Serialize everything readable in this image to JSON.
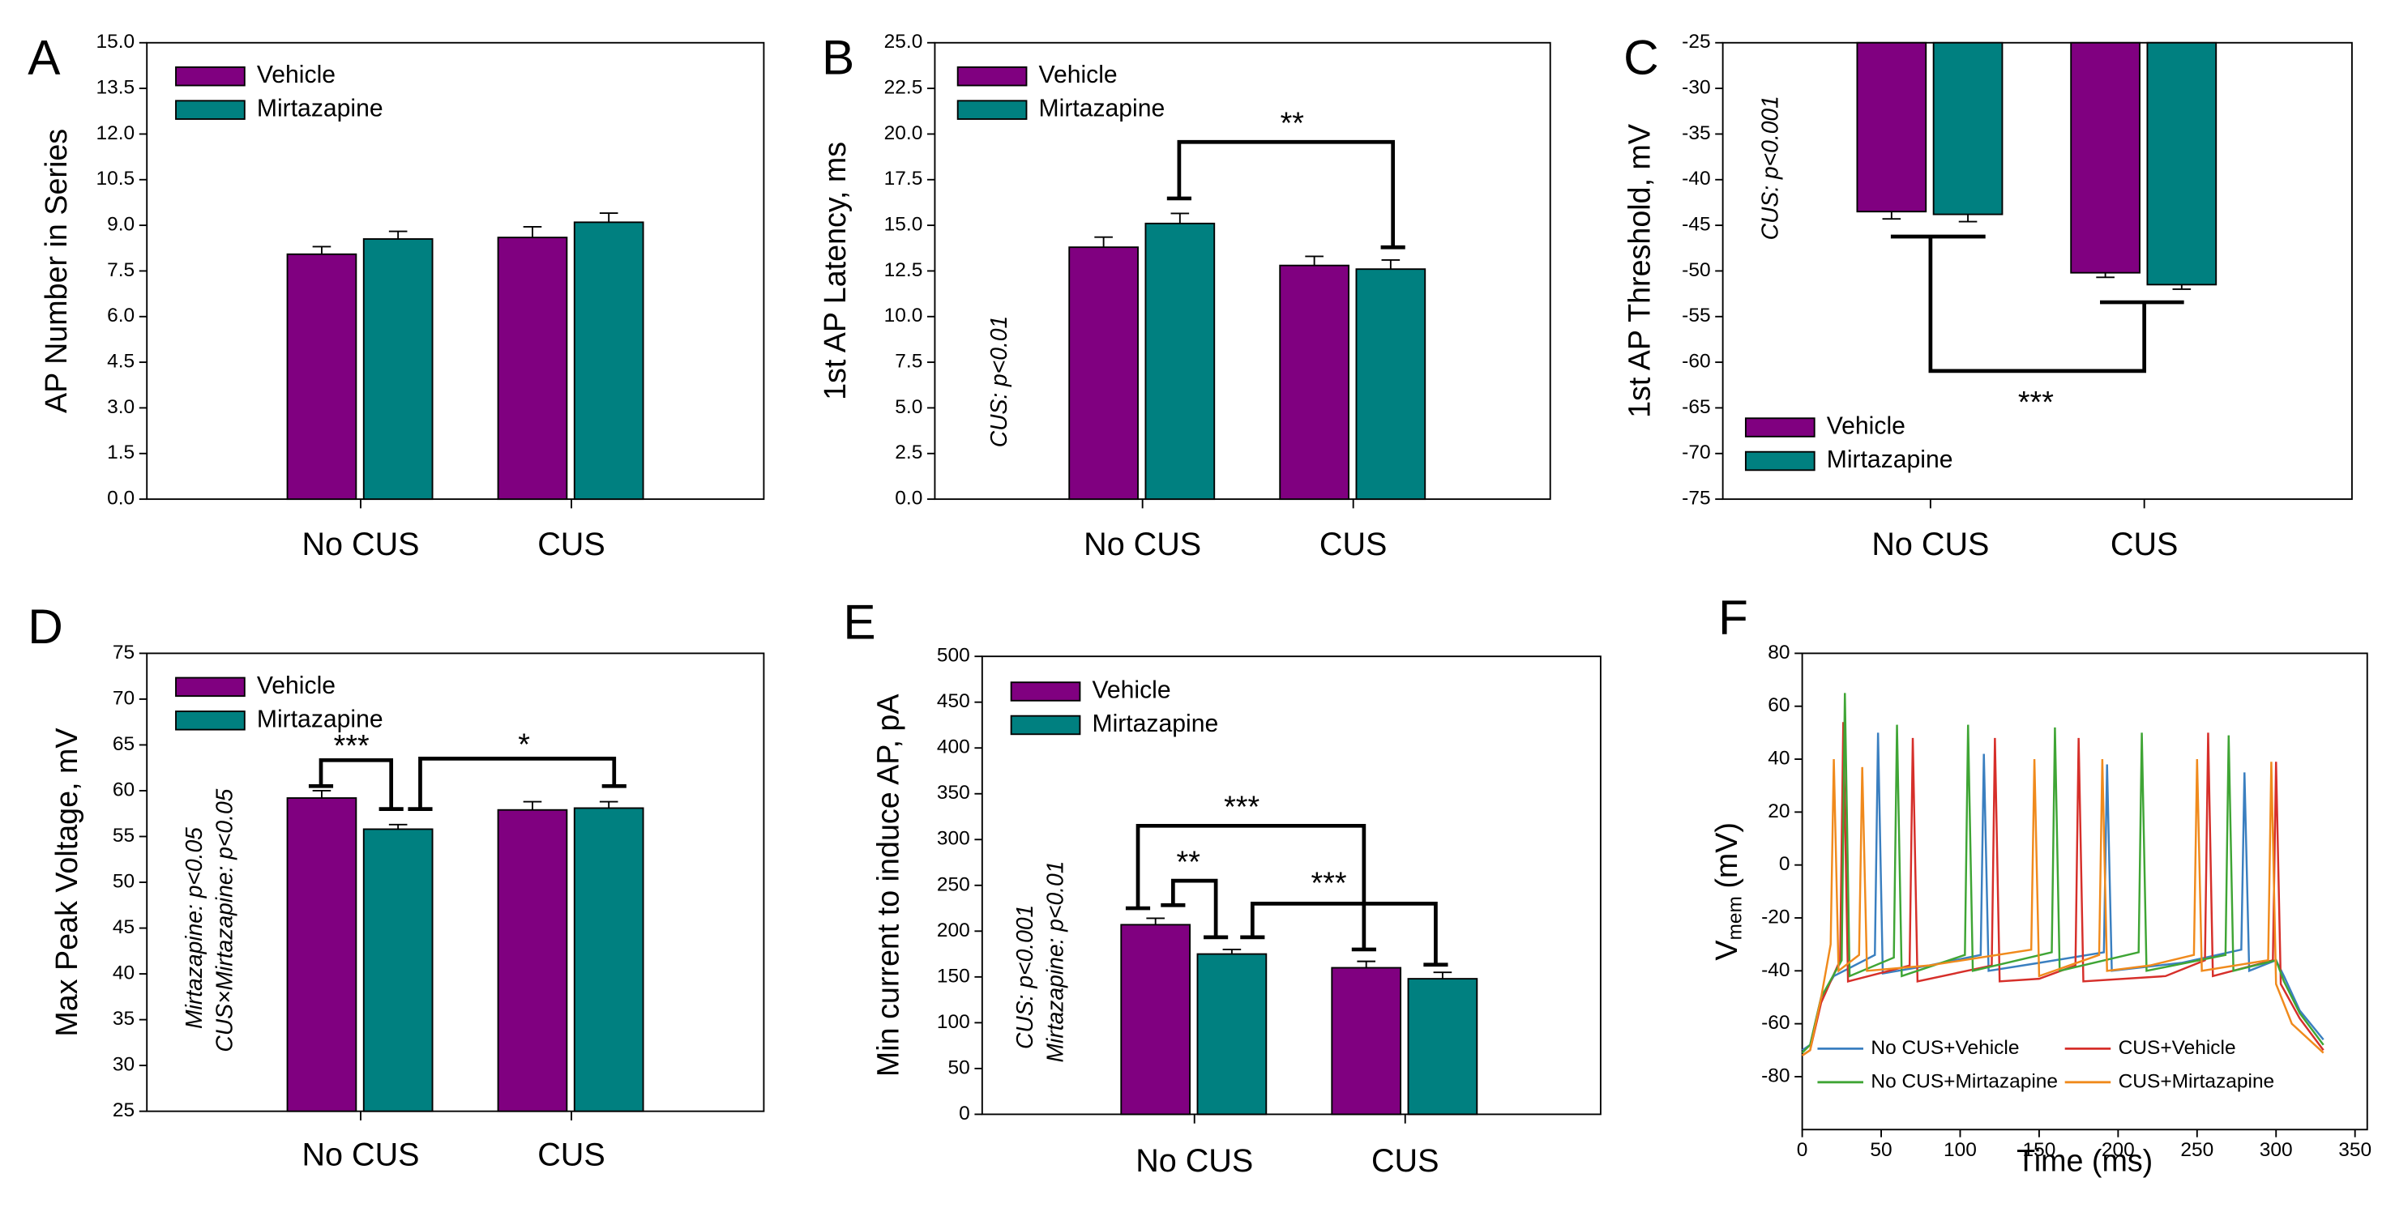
{
  "chart_data": [
    {
      "type": "bar",
      "panel_label": "A",
      "y_label": "AP Number in Series",
      "categories": [
        "No CUS",
        "CUS"
      ],
      "series": [
        {
          "name": "Vehicle",
          "color": "#800080",
          "values": [
            8.05,
            8.6
          ],
          "errors": [
            0.25,
            0.35
          ]
        },
        {
          "name": "Mirtazapine",
          "color": "#008080",
          "values": [
            8.55,
            9.1
          ],
          "errors": [
            0.25,
            0.3
          ]
        }
      ],
      "ylim": [
        0,
        15
      ],
      "yticks": [
        {
          "value": 0,
          "label": "0.0"
        },
        1.5,
        {
          "value": 3,
          "label": "3.0"
        },
        4.5,
        {
          "value": 6,
          "label": "6.0"
        },
        7.5,
        {
          "value": 9,
          "label": "9.0"
        },
        10.5,
        {
          "value": 12,
          "label": "12.0"
        },
        13.5,
        {
          "value": 15,
          "label": "15.0"
        }
      ],
      "legend": "upper left",
      "annotations": [],
      "significance": []
    },
    {
      "type": "bar",
      "panel_label": "B",
      "y_label": "1st AP Latency, ms",
      "categories": [
        "No CUS",
        "CUS"
      ],
      "series": [
        {
          "name": "Vehicle",
          "color": "#800080",
          "values": [
            13.8,
            12.8
          ],
          "errors": [
            0.55,
            0.5
          ]
        },
        {
          "name": "Mirtazapine",
          "color": "#008080",
          "values": [
            15.1,
            12.6
          ],
          "errors": [
            0.55,
            0.5
          ]
        }
      ],
      "ylim": [
        0,
        25
      ],
      "yticks": [
        {
          "value": 0,
          "label": "0.0"
        },
        2.5,
        {
          "value": 5,
          "label": "5.0"
        },
        7.5,
        {
          "value": 10,
          "label": "10.0"
        },
        12.5,
        {
          "value": 15,
          "label": "15.0"
        },
        17.5,
        {
          "value": 20,
          "label": "20.0"
        },
        22.5,
        {
          "value": 25,
          "label": "25.0"
        }
      ],
      "legend": "upper left",
      "annotations": [
        "CUS: p<0.01"
      ],
      "significance": [
        "**"
      ]
    },
    {
      "type": "bar",
      "panel_label": "C",
      "y_label": "1st AP Threshold, mV",
      "categories": [
        "No CUS",
        "CUS"
      ],
      "series": [
        {
          "name": "Vehicle",
          "color": "#800080",
          "values": [
            -43.5,
            -50.2
          ],
          "errors": [
            0.8,
            0.5
          ]
        },
        {
          "name": "Mirtazapine",
          "color": "#008080",
          "values": [
            -43.8,
            -51.5
          ],
          "errors": [
            0.8,
            0.5
          ]
        }
      ],
      "ylim": [
        -75,
        -25
      ],
      "yticks": [
        -75,
        -70,
        -65,
        -60,
        -55,
        -50,
        -45,
        -40,
        -35,
        -30,
        -25
      ],
      "legend": "lower left",
      "annotations": [
        "CUS: p<0.001"
      ],
      "significance": [
        "***"
      ]
    },
    {
      "type": "bar",
      "panel_label": "D",
      "y_label": "Max Peak Voltage, mV",
      "categories": [
        "No CUS",
        "CUS"
      ],
      "series": [
        {
          "name": "Vehicle",
          "color": "#800080",
          "values": [
            59.2,
            57.9
          ],
          "errors": [
            0.8,
            0.9
          ]
        },
        {
          "name": "Mirtazapine",
          "color": "#008080",
          "values": [
            55.8,
            58.1
          ],
          "errors": [
            0.5,
            0.7
          ]
        }
      ],
      "ylim": [
        25,
        75
      ],
      "yticks": [
        25,
        30,
        35,
        40,
        45,
        50,
        55,
        60,
        65,
        70,
        75
      ],
      "legend": "upper left",
      "annotations": [
        "Mirtazapine: p<0.05",
        "CUS×Mirtazapine: p<0.05"
      ],
      "significance": [
        "***",
        "*"
      ]
    },
    {
      "type": "bar",
      "panel_label": "E",
      "y_label": "Min current to induce AP, pA",
      "categories": [
        "No CUS",
        "CUS"
      ],
      "series": [
        {
          "name": "Vehicle",
          "color": "#800080",
          "values": [
            207,
            160
          ],
          "errors": [
            7,
            7
          ]
        },
        {
          "name": "Mirtazapine",
          "color": "#008080",
          "values": [
            175,
            148
          ],
          "errors": [
            5,
            7
          ]
        }
      ],
      "ylim": [
        0,
        500
      ],
      "yticks": [
        0,
        50,
        100,
        150,
        200,
        250,
        300,
        350,
        400,
        450,
        500
      ],
      "legend": "upper left",
      "annotations": [
        "CUS: p<0.001",
        "Mirtazapine: p<0.01"
      ],
      "significance": [
        "***",
        "**",
        "***"
      ]
    },
    {
      "type": "line",
      "panel_label": "F",
      "y_label": "V",
      "y_label_sub": "mem",
      "y_label_unit": "(mV)",
      "x_label": "Time (ms)",
      "xlim": [
        0,
        350
      ],
      "xticks": [
        0,
        50,
        100,
        150,
        200,
        250,
        300,
        350
      ],
      "ylim": [
        -100,
        80
      ],
      "yticks": [
        -80,
        -60,
        -40,
        -20,
        0,
        20,
        40,
        60,
        80
      ],
      "legend": "lower center",
      "series": [
        {
          "name": "No CUS+Vehicle",
          "color": "#3a7fc0",
          "x": [
            0,
            5,
            12,
            20,
            46,
            48,
            51,
            80,
            113,
            115,
            118,
            150,
            191,
            193,
            196,
            240,
            278,
            280,
            283,
            300,
            305,
            315,
            330
          ],
          "values": [
            -70,
            -68,
            -50,
            -42,
            -34,
            50,
            -41,
            -38,
            -34,
            42,
            -40,
            -37,
            -33,
            38,
            -40,
            -37,
            -32,
            35,
            -40,
            -36,
            -42,
            -55,
            -66
          ]
        },
        {
          "name": "CUS+Vehicle",
          "color": "#d62f2a",
          "x": [
            0,
            5,
            12,
            24,
            26,
            29,
            68,
            70,
            73,
            120,
            122,
            125,
            150,
            173,
            175,
            178,
            230,
            255,
            257,
            260,
            298,
            300,
            303,
            315,
            330
          ],
          "values": [
            -72,
            -70,
            -52,
            -36,
            54,
            -44,
            -38,
            48,
            -44,
            -38,
            48,
            -44,
            -43,
            -38,
            48,
            -44,
            -42,
            -36,
            50,
            -42,
            -36,
            39,
            -45,
            -58,
            -70
          ]
        },
        {
          "name": "No CUS+Mirtazapine",
          "color": "#3fa535",
          "x": [
            0,
            5,
            12,
            25,
            27,
            30,
            58,
            60,
            63,
            103,
            105,
            108,
            158,
            160,
            163,
            213,
            215,
            218,
            268,
            270,
            273,
            300,
            305,
            315,
            330
          ],
          "values": [
            -71,
            -68,
            -50,
            -36,
            65,
            -42,
            -35,
            53,
            -42,
            -34,
            53,
            -40,
            -33,
            52,
            -40,
            -33,
            50,
            -40,
            -34,
            49,
            -40,
            -36,
            -44,
            -56,
            -68
          ]
        },
        {
          "name": "CUS+Mirtazapine",
          "color": "#f08a1c",
          "x": [
            0,
            5,
            12,
            18,
            20,
            23,
            36,
            38,
            41,
            80,
            145,
            147,
            150,
            188,
            190,
            193,
            220,
            248,
            250,
            253,
            295,
            297,
            300,
            310,
            330
          ],
          "values": [
            -72,
            -70,
            -50,
            -30,
            40,
            -40,
            -34,
            37,
            -40,
            -38,
            -32,
            40,
            -42,
            -34,
            40,
            -40,
            -38,
            -34,
            40,
            -40,
            -36,
            39,
            -45,
            -60,
            -71
          ]
        }
      ]
    }
  ]
}
